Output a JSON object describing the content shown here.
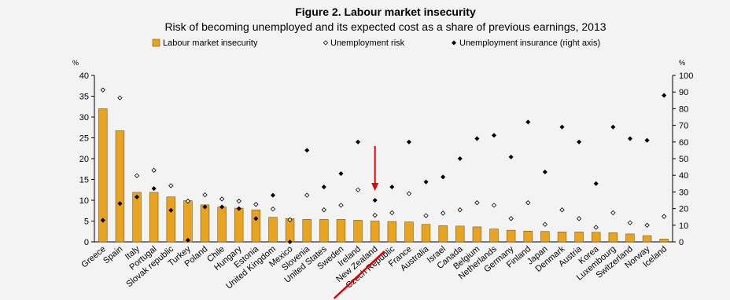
{
  "chart_data": {
    "type": "bar",
    "title": "Figure 2. Labour market insecurity",
    "subtitle": "Risk of becoming unemployed and its expected cost as a share of previous earnings, 2013",
    "left_axis_unit": "%",
    "right_axis_unit": "%",
    "ylim_left": [
      0,
      40
    ],
    "ylim_right": [
      0,
      100
    ],
    "left_ticks": [
      "0",
      "5",
      "10",
      "15",
      "20",
      "25",
      "30",
      "35",
      "40"
    ],
    "right_ticks": [
      "0",
      "10",
      "20",
      "30",
      "40",
      "50",
      "60",
      "70",
      "80",
      "90",
      "100"
    ],
    "grid": false,
    "legend_position": "top",
    "categories": [
      "Greece",
      "Spain",
      "Italy",
      "Portugal",
      "Slovak republic",
      "Turkey",
      "Poland",
      "Chile",
      "Hungary",
      "Estonia",
      "United Kingdom",
      "Mexico",
      "Slovenia",
      "United States",
      "Sweden",
      "Ireland",
      "New Zealand",
      "Czech Republic",
      "France",
      "Australia",
      "Israel",
      "Canada",
      "Belgium",
      "Netherlands",
      "Germany",
      "Finland",
      "Japan",
      "Denmark",
      "Austria",
      "Korea",
      "Luxembourg",
      "Switzerland",
      "Norway",
      "Iceland"
    ],
    "series": [
      {
        "name": "Labour market insecurity",
        "type": "bar",
        "axis": "left",
        "color": "#e8a320",
        "values": [
          32.0,
          26.7,
          11.9,
          11.9,
          10.8,
          9.9,
          8.9,
          8.4,
          8.1,
          7.7,
          5.9,
          5.6,
          5.4,
          5.4,
          5.4,
          5.2,
          5.0,
          4.9,
          4.8,
          4.2,
          3.9,
          3.8,
          3.6,
          3.1,
          2.8,
          2.6,
          2.5,
          2.4,
          2.4,
          2.3,
          2.2,
          1.9,
          1.5,
          0.7
        ]
      },
      {
        "name": "Unemployment risk",
        "type": "scatter",
        "axis": "left",
        "marker": "open-diamond",
        "values": [
          36.5,
          34.6,
          15.9,
          17.2,
          13.5,
          9.8,
          11.3,
          10.3,
          9.8,
          9.0,
          7.9,
          5.3,
          11.2,
          7.7,
          8.8,
          12.5,
          6.4,
          7.0,
          11.6,
          6.3,
          6.9,
          7.7,
          9.4,
          8.8,
          5.6,
          9.4,
          4.2,
          7.7,
          5.6,
          3.5,
          7.0,
          4.6,
          4.0,
          6.1
        ]
      },
      {
        "name": "Unemployment insurance (right axis)",
        "type": "scatter",
        "axis": "right",
        "marker": "filled-diamond",
        "values": [
          13,
          23,
          27,
          32,
          19,
          1,
          21,
          21,
          20,
          14,
          28,
          0,
          55,
          33,
          41,
          60,
          25,
          33,
          60,
          36,
          39,
          50,
          62,
          64,
          51,
          72,
          42,
          69,
          60,
          35,
          69,
          62,
          61,
          88
        ]
      }
    ],
    "annotations": [
      {
        "type": "arrow",
        "color": "#e00000",
        "target": "New Zealand"
      },
      {
        "type": "underline",
        "color": "#e00000",
        "target": "New Zealand"
      }
    ]
  }
}
